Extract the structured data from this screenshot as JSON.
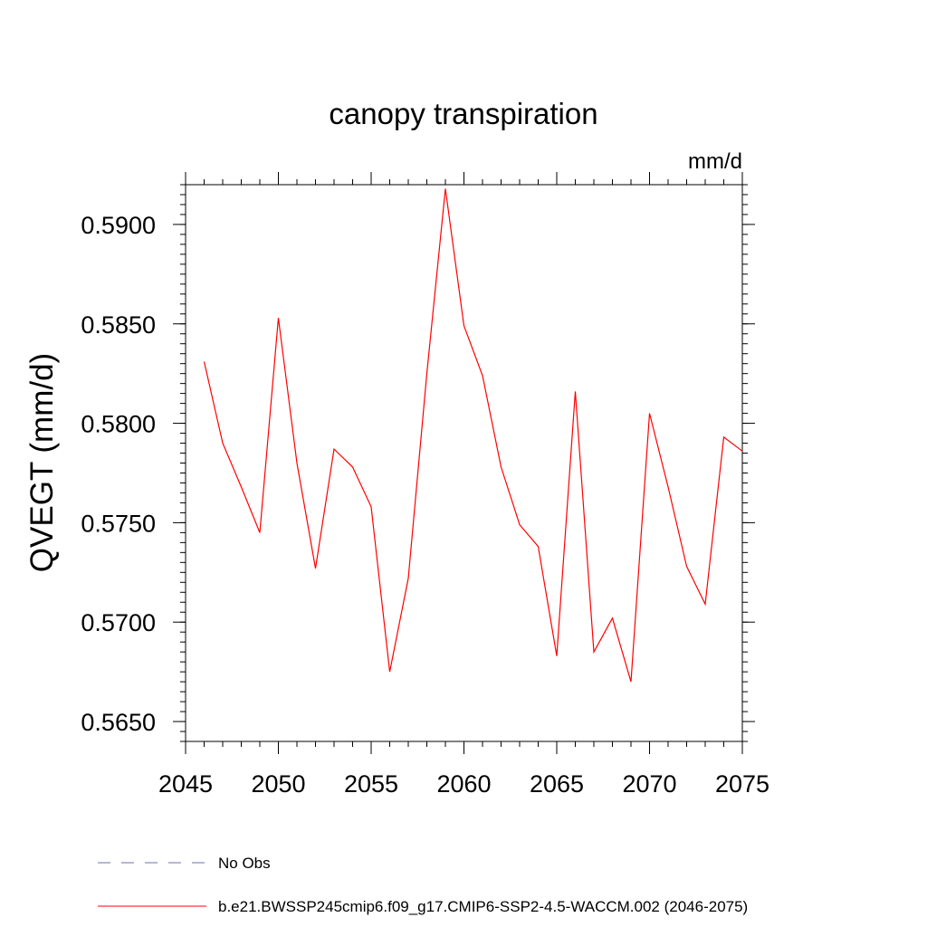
{
  "chart_data": {
    "type": "line",
    "title": "canopy transpiration",
    "units_label": "mm/d",
    "ylabel": "QVEGT  (mm/d)",
    "xlabel": "",
    "xlim": [
      2045,
      2075
    ],
    "ylim": [
      0.564,
      0.592
    ],
    "x_ticks": [
      2045,
      2050,
      2055,
      2060,
      2065,
      2070,
      2075
    ],
    "x_tick_labels": [
      "2045",
      "2050",
      "2055",
      "2060",
      "2065",
      "2070",
      "2075"
    ],
    "y_ticks": [
      0.565,
      0.57,
      0.575,
      0.58,
      0.585,
      0.59
    ],
    "y_tick_labels": [
      "0.5650",
      "0.5700",
      "0.5750",
      "0.5800",
      "0.5850",
      "0.5900"
    ],
    "x_minor_step": 1,
    "y_minor_step": 0.0005,
    "grid": false,
    "legend_position": "bottom",
    "series": [
      {
        "name": "b.e21.BWSSP245cmip6.f09_g17.CMIP6-SSP2-4.5-WACCM.002 (2046-2075)",
        "color": "#ff0000",
        "style": "solid",
        "x": [
          2046,
          2047,
          2048,
          2049,
          2050,
          2051,
          2052,
          2053,
          2054,
          2055,
          2056,
          2057,
          2058,
          2059,
          2060,
          2061,
          2062,
          2063,
          2064,
          2065,
          2066,
          2067,
          2068,
          2069,
          2070,
          2071,
          2072,
          2073,
          2074,
          2075
        ],
        "values": [
          0.5831,
          0.579,
          0.5768,
          0.5745,
          0.5853,
          0.578,
          0.5727,
          0.5787,
          0.5778,
          0.5758,
          0.5675,
          0.5722,
          0.5825,
          0.5918,
          0.5849,
          0.5824,
          0.5778,
          0.5749,
          0.5738,
          0.5683,
          0.5816,
          0.5685,
          0.5702,
          0.567,
          0.5805,
          0.5768,
          0.5728,
          0.5709,
          0.5793,
          0.5786
        ]
      }
    ],
    "legend": [
      {
        "label": "No Obs",
        "color": "#6f6fb4",
        "style": "dashed"
      },
      {
        "label": "b.e21.BWSSP245cmip6.f09_g17.CMIP6-SSP2-4.5-WACCM.002 (2046-2075)",
        "color": "#ff0000",
        "style": "solid"
      }
    ]
  }
}
